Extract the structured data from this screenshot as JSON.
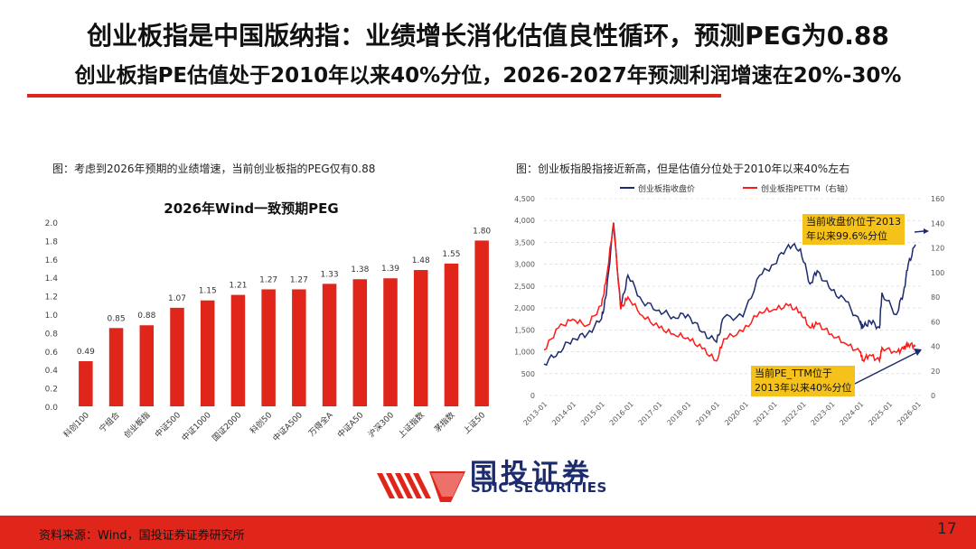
{
  "header": {
    "title": "创业板指是中国版纳指：业绩增长消化估值良性循环，预测PEG为0.88",
    "subtitle": "创业板指PE估值处于2010年以来40%分位，2026-2027年预测利润增速在20%-30%"
  },
  "left_caption": "图：考虑到2026年预期的业绩增速，当前创业板指的PEG仅有0.88",
  "right_caption": "图：创业板指股指接近新高，但是估值分位处于2010年以来40%左右",
  "callouts": {
    "top": "当前收盘价位于2013年以来99.6%分位",
    "top_line1": "当前收盘价位于2013",
    "top_line2": "年以来99.6%分位",
    "bottom_line1": "当前PE_TTM位于",
    "bottom_line2": "2013年以来40%分位"
  },
  "logo": {
    "cn": "国投证券",
    "en": "SDIC SECURITIES"
  },
  "footer": {
    "source": "资料来源：Wind，国投证券证券研究所",
    "page": "17"
  },
  "colors": {
    "accent": "#e0261b",
    "navy": "#1c2b6e",
    "callout": "#f5c21b"
  },
  "chart_data": [
    {
      "type": "bar",
      "title": "2026年Wind一致预期PEG",
      "categories": [
        "科创100",
        "宁组合",
        "创业板指",
        "中证500",
        "中证1000",
        "国证2000",
        "科创50",
        "中证A500",
        "万得全A",
        "中证A50",
        "沪深300",
        "上证指数",
        "茅指数",
        "上证50"
      ],
      "values": [
        0.49,
        0.85,
        0.88,
        1.07,
        1.15,
        1.21,
        1.27,
        1.27,
        1.33,
        1.38,
        1.39,
        1.48,
        1.55,
        1.8
      ],
      "ylim": [
        0,
        2.0
      ],
      "yticks": [
        "0.0",
        "0.2",
        "0.4",
        "0.6",
        "0.8",
        "1.0",
        "1.2",
        "1.4",
        "1.6",
        "1.8",
        "2.0"
      ],
      "color": "#e0261b",
      "grid": false
    },
    {
      "type": "line",
      "series": [
        {
          "name": "创业板指收盘价",
          "axis": "left",
          "color": "#1c2b6e",
          "x": [
            "2013-01",
            "2013-07",
            "2014-01",
            "2014-07",
            "2015-01",
            "2015-03",
            "2015-06",
            "2015-09",
            "2015-12",
            "2016-06",
            "2017-01",
            "2017-07",
            "2018-01",
            "2018-07",
            "2019-01",
            "2019-04",
            "2019-12",
            "2020-07",
            "2021-01",
            "2021-07",
            "2021-12",
            "2022-04",
            "2022-07",
            "2023-01",
            "2023-07",
            "2024-01",
            "2024-02",
            "2024-05",
            "2024-09",
            "2024-10",
            "2025-04",
            "2025-07",
            "2025-09",
            "2025-12"
          ],
          "y": [
            720,
            1000,
            1300,
            1400,
            1750,
            2300,
            3950,
            2000,
            2750,
            2150,
            1950,
            1800,
            1850,
            1450,
            1220,
            1780,
            1800,
            2750,
            3000,
            3450,
            3350,
            2550,
            2850,
            2400,
            2150,
            1650,
            1550,
            1700,
            1550,
            2350,
            1850,
            2350,
            3000,
            3450
          ]
        },
        {
          "name": "创业板指PETTM（右轴）",
          "axis": "right",
          "color": "#ff1a1a",
          "x": [
            "2013-01",
            "2013-07",
            "2014-01",
            "2014-07",
            "2015-01",
            "2015-03",
            "2015-06",
            "2015-09",
            "2015-12",
            "2016-06",
            "2017-01",
            "2017-07",
            "2018-01",
            "2018-07",
            "2019-01",
            "2019-04",
            "2019-12",
            "2020-07",
            "2021-01",
            "2021-07",
            "2021-12",
            "2022-04",
            "2022-07",
            "2023-01",
            "2023-07",
            "2024-01",
            "2024-02",
            "2024-05",
            "2024-09",
            "2024-10",
            "2025-04",
            "2025-07",
            "2025-09",
            "2025-12"
          ],
          "y": [
            37,
            55,
            62,
            57,
            73,
            95,
            140,
            70,
            80,
            65,
            55,
            50,
            47,
            38,
            28,
            46,
            52,
            68,
            70,
            73,
            68,
            55,
            58,
            50,
            42,
            35,
            29,
            33,
            28,
            39,
            35,
            38,
            42,
            40
          ]
        }
      ],
      "y_left": {
        "range": [
          0,
          4500
        ],
        "ticks": [
          "0",
          "500",
          "1,000",
          "1,500",
          "2,000",
          "2,500",
          "3,000",
          "3,500",
          "4,000",
          "4,500"
        ]
      },
      "y_right": {
        "range": [
          0,
          160
        ],
        "ticks": [
          "0",
          "20",
          "40",
          "60",
          "80",
          "100",
          "120",
          "140",
          "160"
        ]
      },
      "x_ticks": [
        "2013-01",
        "2014-01",
        "2015-01",
        "2016-01",
        "2017-01",
        "2018-01",
        "2019-01",
        "2020-01",
        "2021-01",
        "2022-01",
        "2023-01",
        "2024-01",
        "2025-01",
        "2026-01"
      ],
      "legend": "top",
      "grid": false
    }
  ]
}
